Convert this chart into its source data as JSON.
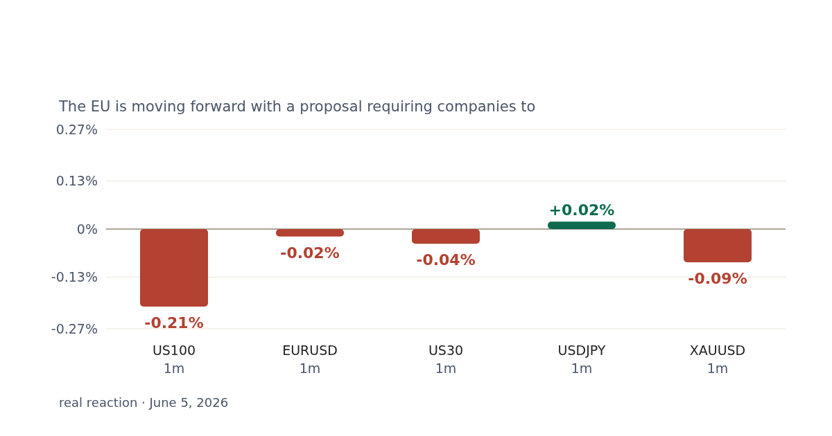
{
  "chart_data": {
    "type": "bar",
    "subtitle": "The EU is moving forward with a proposal requiring companies to",
    "categories": [
      "US100\n1m",
      "EURUSD\n1m",
      "US30\n1m",
      "USDJPY\n1m",
      "XAUUSD\n1m"
    ],
    "values": [
      -0.21,
      -0.02,
      -0.04,
      0.02,
      -0.09
    ],
    "colors": [
      "#b34232",
      "#b34232",
      "#b34232",
      "#0e6b4f",
      "#b34232"
    ],
    "value_labels": [
      "-0.21%",
      "-0.02%",
      "-0.04%",
      "+0.02%",
      "-0.09%"
    ],
    "ylim": [
      -0.27,
      0.27
    ],
    "yticks": [
      {
        "value": -0.27,
        "label": "-0.27%"
      },
      {
        "value": -0.13,
        "label": "-0.13%"
      },
      {
        "value": 0,
        "label": "0%"
      },
      {
        "value": 0.13,
        "label": "0.13%"
      },
      {
        "value": 0.27,
        "label": "0.27%"
      }
    ],
    "grid": "y",
    "annotations": [
      "real reaction · June 5, 2026"
    ]
  }
}
